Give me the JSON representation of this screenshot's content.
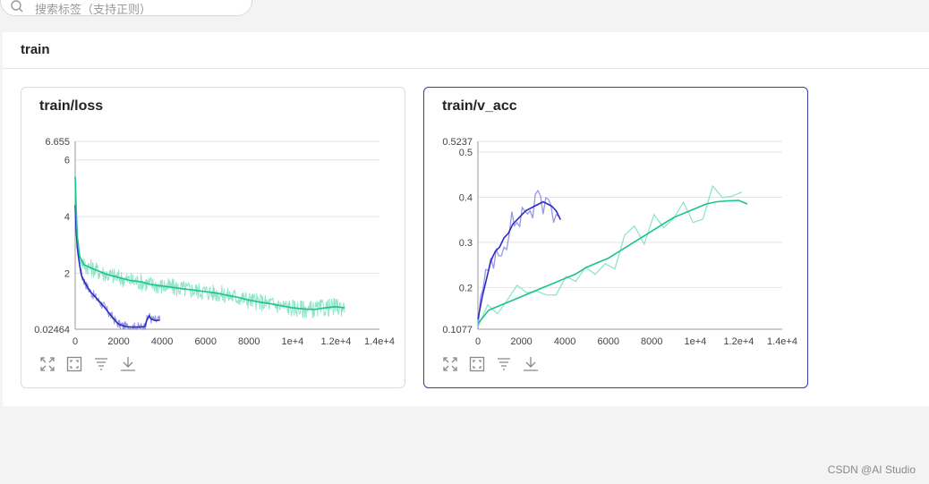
{
  "search": {
    "placeholder": "搜索标签（支持正则）"
  },
  "section": {
    "title": "train"
  },
  "charts": [
    {
      "title": "train/loss",
      "x_ticks": [
        "0",
        "2000",
        "4000",
        "6000",
        "8000",
        "1e+4",
        "1.2e+4",
        "1.4e+4"
      ],
      "y_ticks": [
        "0.02464",
        "2",
        "4",
        "6",
        "6.655"
      ]
    },
    {
      "title": "train/v_acc",
      "x_ticks": [
        "0",
        "2000",
        "4000",
        "6000",
        "8000",
        "1e+4",
        "1.2e+4",
        "1.4e+4"
      ],
      "y_ticks": [
        "0.1077",
        "0.2",
        "0.3",
        "0.4",
        "0.5",
        "0.5237"
      ]
    }
  ],
  "chart_data": [
    {
      "type": "line",
      "title": "train/loss",
      "xlim": [
        0,
        14000
      ],
      "ylim": [
        0.02464,
        6.655
      ],
      "colors": {
        "green": "#19c48c",
        "green_light": "#7fe0bd",
        "blue": "#2b2bc7",
        "blue_light": "#8585e0"
      },
      "series": [
        {
          "x": [
            0,
            50,
            100,
            200,
            300,
            500,
            700,
            1000,
            1300,
            1600,
            1900,
            2000,
            2300,
            2600,
            2900,
            3000,
            3200,
            3300,
            3400,
            3500,
            3700,
            3900
          ],
          "y": [
            4.4,
            3.5,
            2.9,
            2.3,
            1.9,
            1.6,
            1.35,
            1.1,
            0.85,
            0.55,
            0.28,
            0.2,
            0.12,
            0.1,
            0.1,
            0.1,
            0.12,
            0.35,
            0.5,
            0.38,
            0.33,
            0.35
          ]
        },
        {
          "x": [
            0,
            50,
            100,
            200,
            400,
            700,
            1000,
            1500,
            2000,
            2500,
            3000,
            3500,
            4000,
            4500,
            5000,
            5500,
            6000,
            6500,
            7000,
            7500,
            8000,
            8500,
            9000,
            9500,
            10000,
            10500,
            11000,
            11500,
            12000,
            12400
          ],
          "y": [
            5.4,
            4.2,
            3.3,
            2.6,
            2.3,
            2.2,
            2.1,
            1.95,
            1.85,
            1.75,
            1.7,
            1.6,
            1.55,
            1.5,
            1.45,
            1.4,
            1.35,
            1.3,
            1.22,
            1.15,
            1.05,
            0.98,
            0.92,
            0.85,
            0.78,
            0.74,
            0.72,
            0.78,
            0.82,
            0.78
          ]
        }
      ]
    },
    {
      "type": "line",
      "title": "train/v_acc",
      "xlim": [
        0,
        14000
      ],
      "ylim": [
        0.1077,
        0.5237
      ],
      "series": [
        {
          "x": [
            0,
            200,
            400,
            600,
            800,
            1000,
            1200,
            1400,
            1600,
            1800,
            2000,
            2200,
            2400,
            2600,
            2800,
            3000,
            3200,
            3400,
            3600,
            3800
          ],
          "y": [
            0.13,
            0.18,
            0.22,
            0.26,
            0.28,
            0.29,
            0.31,
            0.32,
            0.34,
            0.35,
            0.36,
            0.37,
            0.375,
            0.38,
            0.385,
            0.39,
            0.385,
            0.38,
            0.37,
            0.35
          ]
        },
        {
          "x": [
            0,
            500,
            1000,
            1500,
            2000,
            2500,
            3000,
            3500,
            4000,
            4500,
            5000,
            5500,
            6000,
            6500,
            7000,
            7500,
            8000,
            8500,
            9000,
            9500,
            10000,
            10500,
            11000,
            11500,
            12000,
            12400
          ],
          "y": [
            0.12,
            0.15,
            0.16,
            0.17,
            0.18,
            0.19,
            0.2,
            0.21,
            0.22,
            0.23,
            0.245,
            0.255,
            0.265,
            0.28,
            0.295,
            0.31,
            0.325,
            0.34,
            0.355,
            0.365,
            0.375,
            0.385,
            0.39,
            0.392,
            0.393,
            0.385
          ]
        }
      ]
    }
  ],
  "footer": {
    "text": "CSDN @AI Studio"
  }
}
